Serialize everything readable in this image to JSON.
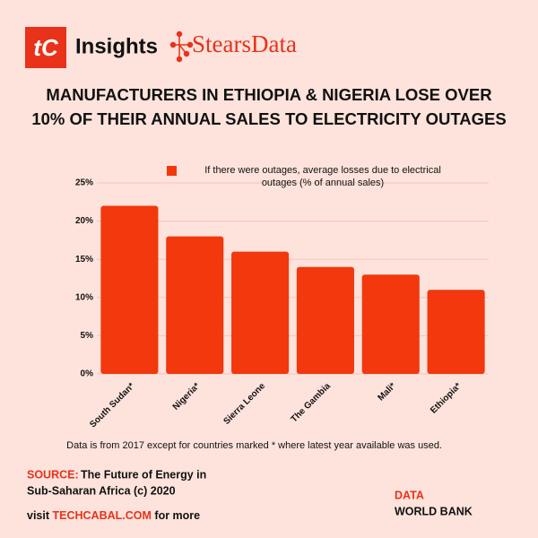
{
  "header": {
    "logo": "tC",
    "brand": "Insights",
    "partner": "StearsData"
  },
  "chart_data": {
    "type": "bar",
    "title": [
      "MANUFACTURERS IN ETHIOPIA & NIGERIA LOSE OVER",
      "10% OF THEIR ANNUAL SALES TO ELECTRICITY OUTAGES"
    ],
    "legend": "If there were outages, average losses due to electrical outages (% of annual sales)",
    "categories": [
      "South Sudan*",
      "Nigeria*",
      "Sierra Leone",
      "The Gambia",
      "Mali*",
      "Ethiopia*"
    ],
    "values": [
      22,
      18,
      16,
      14,
      13,
      11
    ],
    "color": "#f2380c",
    "ylim": [
      0,
      25
    ],
    "yticks": [
      {
        "value": 0,
        "label": "0%"
      },
      {
        "value": 5,
        "label": "5%"
      },
      {
        "value": 10,
        "label": "10%"
      },
      {
        "value": 15,
        "label": "15%"
      },
      {
        "value": 20,
        "label": "20%"
      },
      {
        "value": 25,
        "label": "25%"
      }
    ],
    "grid": true,
    "note": "Data is from 2017 except for countries  marked * where latest year available was used."
  },
  "footer": {
    "source_label": "SOURCE:",
    "source": [
      "The Future of Energy in",
      "Sub-Saharan Africa (c) 2020"
    ],
    "visit": "visit",
    "site": "TECHCABAL.COM",
    "more": "for more",
    "data_label": "DATA",
    "data_source": "WORLD BANK"
  }
}
